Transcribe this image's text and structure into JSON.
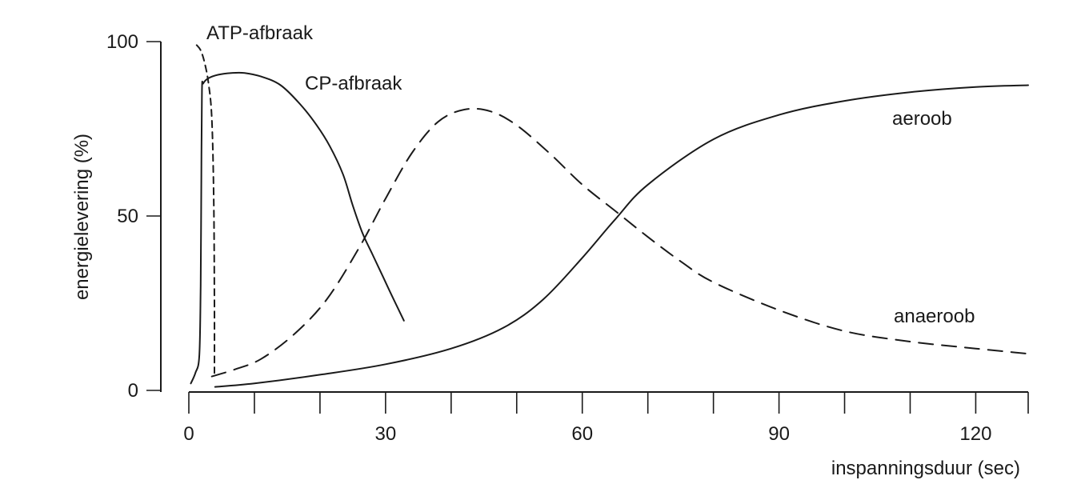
{
  "chart_data": {
    "type": "line",
    "xlabel": "inspanningsduur (sec)",
    "ylabel": "energielevering (%)",
    "xlim": [
      0,
      128
    ],
    "ylim": [
      0,
      100
    ],
    "x_ticks": [
      0,
      30,
      60,
      90,
      120
    ],
    "y_ticks": [
      0,
      50,
      100
    ],
    "x_minor_ticks": [
      0,
      10,
      20,
      30,
      40,
      50,
      60,
      70,
      80,
      90,
      100,
      110,
      120,
      128
    ],
    "grid": false,
    "series": [
      {
        "name": "ATP-afbraak",
        "line_style": "short-dashed",
        "x": [
          1.2,
          1.8,
          2.4,
          3.0,
          3.5,
          3.8,
          3.9,
          3.9
        ],
        "y": [
          99,
          97.5,
          94,
          88,
          78,
          55,
          25,
          5
        ]
      },
      {
        "name": "CP-afbraak",
        "line_style": "solid",
        "x": [
          0.3,
          1.0,
          1.6,
          1.8,
          1.9,
          2.0,
          2.2,
          3.0,
          4.5,
          6.5,
          8.5,
          11.0,
          14.0,
          17.0,
          19.5,
          21.5,
          23.5,
          25.0,
          26.5,
          28.0,
          29.5,
          31.0,
          32.8
        ],
        "y": [
          2,
          5,
          10,
          30,
          60,
          86,
          88,
          89.5,
          90.5,
          91,
          91,
          90,
          87.5,
          82,
          76,
          70,
          62,
          53,
          45,
          39,
          33,
          27,
          20
        ]
      },
      {
        "name": "anaeroob",
        "line_style": "dashed",
        "x": [
          3.5,
          7.0,
          11.0,
          16.0,
          21.0,
          26.0,
          30.0,
          34.0,
          38.0,
          42.0,
          46.0,
          50.0,
          55.0,
          60.0,
          65.0,
          70.0,
          75.0,
          80.0,
          90.0,
          100.0,
          110.0,
          120.0,
          128.0
        ],
        "y": [
          4,
          6,
          9,
          16,
          26,
          41,
          55,
          68,
          77,
          80.5,
          80,
          76,
          68,
          59,
          51.5,
          44,
          37,
          31,
          23,
          17,
          14,
          12,
          10.5
        ]
      },
      {
        "name": "aeroob",
        "line_style": "solid",
        "x": [
          4.0,
          10.0,
          20.0,
          30.0,
          40.0,
          48.0,
          54.0,
          60.0,
          65.0,
          70.0,
          80.0,
          90.0,
          100.0,
          110.0,
          120.0,
          128.0
        ],
        "y": [
          1,
          2,
          4.5,
          7.5,
          12,
          18,
          26,
          38,
          49,
          59,
          72,
          79,
          83,
          85.5,
          87,
          87.5
        ]
      }
    ],
    "annotations": [
      {
        "text": "ATP-afbraak"
      },
      {
        "text": "CP-afbraak"
      },
      {
        "text": "aeroob"
      },
      {
        "text": "anaeroob"
      }
    ]
  }
}
